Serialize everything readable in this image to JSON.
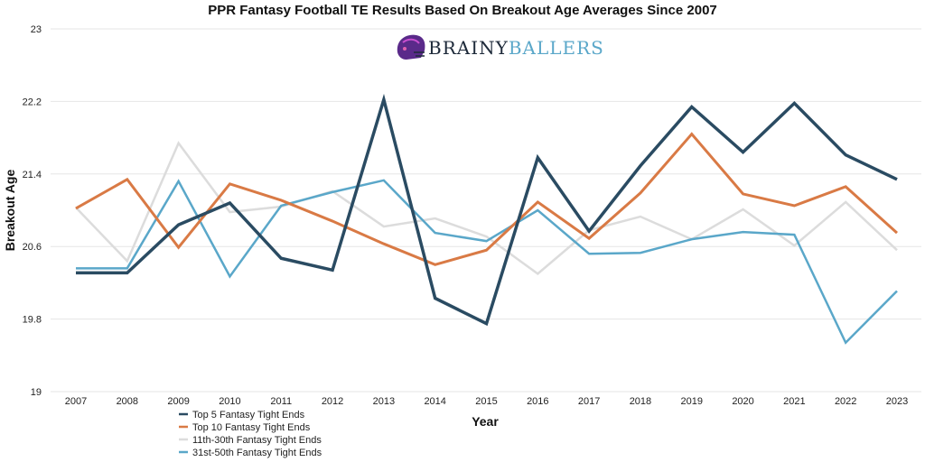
{
  "logo": {
    "part1": "BRAINY",
    "part2": "BALLERS",
    "color1": "#1e2a3a",
    "color2": "#5aa7c9",
    "icon": "football-helmet-icon"
  },
  "chart_data": {
    "type": "line",
    "title": "PPR Fantasy Football TE Results Based On Breakout Age Averages Since 2007",
    "xlabel": "Year",
    "ylabel": "Breakout Age",
    "ylim": [
      19,
      23
    ],
    "yticks": [
      "19",
      "19.8",
      "20.6",
      "21.4",
      "22.2",
      "23"
    ],
    "grid": true,
    "legend_position": "bottom",
    "categories": [
      "2007",
      "2008",
      "2009",
      "2010",
      "2011",
      "2012",
      "2013",
      "2014",
      "2015",
      "2016",
      "2017",
      "2018",
      "2019",
      "2020",
      "2021",
      "2022",
      "2023"
    ],
    "series": [
      {
        "name": "Top 5 Fantasy Tight Ends",
        "color": "#2a4b62",
        "width": 3.5,
        "values": [
          20.31,
          20.31,
          20.84,
          21.08,
          20.47,
          20.34,
          22.22,
          20.03,
          19.75,
          21.58,
          20.77,
          21.49,
          22.14,
          21.64,
          22.18,
          21.61,
          21.34
        ]
      },
      {
        "name": "Top 10 Fantasy Tight Ends",
        "color": "#d97a45",
        "width": 3,
        "values": [
          21.02,
          21.34,
          20.59,
          21.29,
          21.11,
          20.88,
          20.63,
          20.4,
          20.56,
          21.09,
          20.69,
          21.19,
          21.84,
          21.18,
          21.05,
          21.26,
          20.75
        ]
      },
      {
        "name": "11th-30th Fantasy Tight Ends",
        "color": "#dcdcdc",
        "width": 2.5,
        "values": [
          21.03,
          20.44,
          21.74,
          20.98,
          21.04,
          21.21,
          20.82,
          20.91,
          20.71,
          20.3,
          20.78,
          20.93,
          20.68,
          21.01,
          20.61,
          21.09,
          20.56
        ]
      },
      {
        "name": "31st-50th Fantasy Tight Ends",
        "color": "#5aa7c9",
        "width": 2.5,
        "values": [
          20.36,
          20.36,
          21.32,
          20.27,
          21.05,
          21.2,
          21.33,
          20.75,
          20.66,
          21.0,
          20.52,
          20.53,
          20.68,
          20.76,
          20.73,
          19.54,
          20.11
        ]
      }
    ]
  }
}
